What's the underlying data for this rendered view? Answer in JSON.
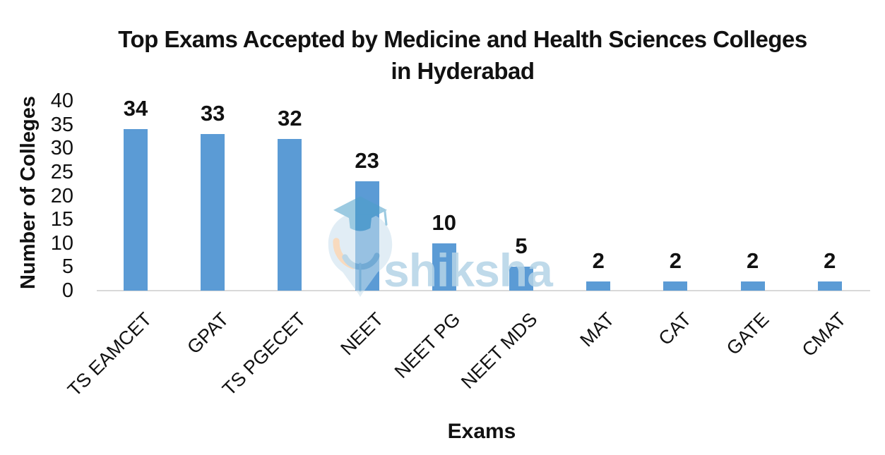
{
  "chart_data": {
    "type": "bar",
    "title": "Top Exams Accepted by Medicine and Health Sciences Colleges in Hyderabad",
    "title_lines": [
      "Top Exams Accepted by Medicine and Health Sciences Colleges",
      "in Hyderabad"
    ],
    "categories": [
      "TS EAMCET",
      "GPAT",
      "TS PGECET",
      "NEET",
      "NEET PG",
      "NEET MDS",
      "MAT",
      "CAT",
      "GATE",
      "CMAT"
    ],
    "values": [
      34,
      33,
      32,
      23,
      10,
      5,
      2,
      2,
      2,
      2
    ],
    "xlabel": "Exams",
    "ylabel": "Number of Colleges",
    "ylim": [
      0,
      40
    ],
    "yticks": [
      0,
      5,
      10,
      15,
      20,
      25,
      30,
      35,
      40
    ],
    "grid": false,
    "legend": false,
    "bar_color": "#5b9bd5",
    "axis_line_color": "#d9d9d9",
    "label_color": "#111111"
  },
  "watermark": {
    "text": "shiksha",
    "text_color": "#b5d4e7",
    "icon": "shiksha-graduation-cap-logo",
    "icon_colors": {
      "body": "#c9e0ee",
      "cap": "#4d9fc9",
      "arc_orange": "#f3bc8a",
      "collar": "#86b8d4"
    }
  }
}
